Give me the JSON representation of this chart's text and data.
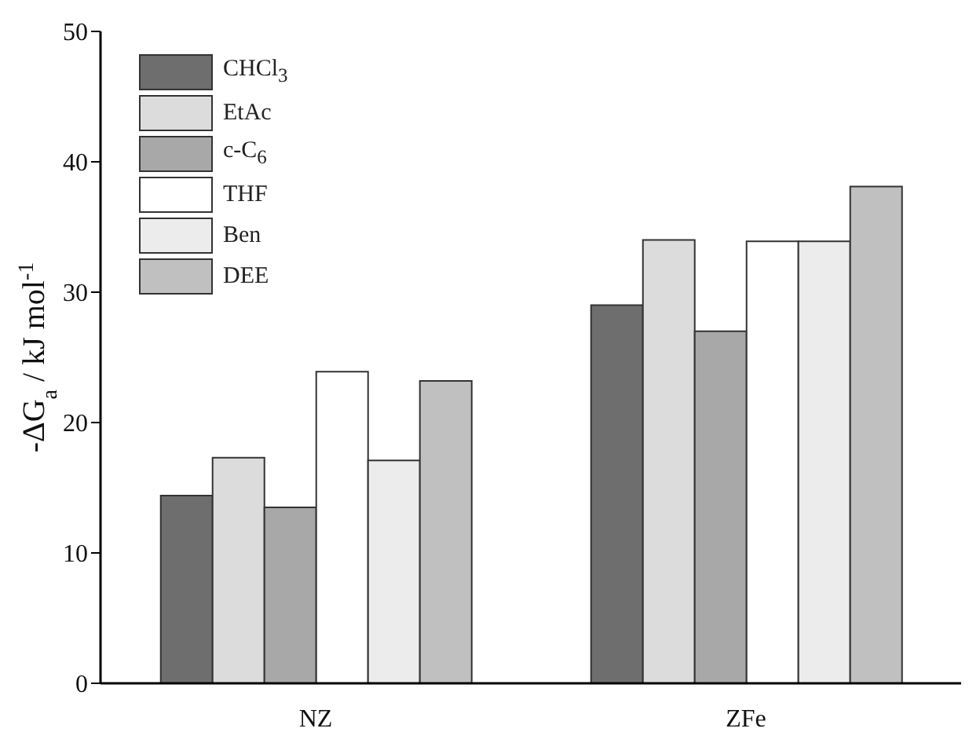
{
  "chart_data": {
    "type": "bar",
    "ylabel": "-ΔG$_{a}$ / kJ mol$^{-1}$",
    "categories": [
      "NZ",
      "ZFe"
    ],
    "series": [
      {
        "name": "CHCl$_{3}$",
        "color": "#6e6e6e",
        "values": [
          14.4,
          29.0
        ]
      },
      {
        "name": "EtAc",
        "color": "#dcdcdc",
        "values": [
          17.3,
          34.0
        ]
      },
      {
        "name": "c-C$_{6}$",
        "color": "#a8a8a8",
        "values": [
          13.5,
          27.0
        ]
      },
      {
        "name": "THF",
        "color": "#ffffff",
        "values": [
          23.9,
          33.9
        ]
      },
      {
        "name": "Ben",
        "color": "#ececec",
        "values": [
          17.1,
          33.9
        ]
      },
      {
        "name": "DEE",
        "color": "#c0c0c0",
        "values": [
          23.2,
          38.1
        ]
      }
    ],
    "ylim": [
      0,
      50
    ],
    "yticks": [
      0,
      10,
      20,
      30,
      40,
      50
    ],
    "grid": false,
    "legend": "top left"
  }
}
